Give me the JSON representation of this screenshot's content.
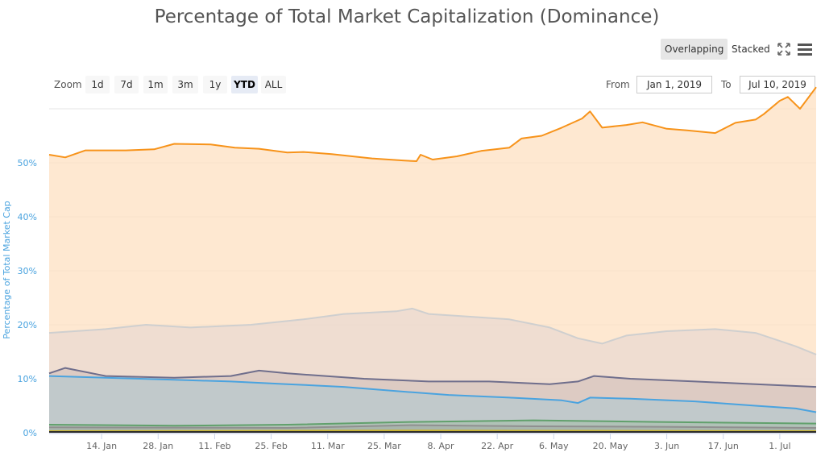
{
  "title": "Percentage of Total Market Capitalization (Dominance)",
  "mode_buttons": [
    "Overlapping",
    "Stacked"
  ],
  "icons": [
    "fullscreen-icon",
    "menu-icon"
  ],
  "zoom": {
    "label": "Zoom",
    "buttons": [
      "1d",
      "7d",
      "1m",
      "3m",
      "1y",
      "YTD",
      "ALL"
    ],
    "active": "YTD"
  },
  "range": {
    "from_label": "From",
    "from_value": "Jan 1, 2019",
    "to_label": "To",
    "to_value": "Jul 10, 2019"
  },
  "chart_data": {
    "type": "area",
    "ylabel": "Percentage of Total Market Cap",
    "ylim": [
      0,
      60
    ],
    "ytick_values": [
      0,
      10,
      20,
      30,
      40,
      50
    ],
    "ytick_labels": [
      "0%",
      "10%",
      "20%",
      "30%",
      "40%",
      "50%"
    ],
    "x_range": [
      "2019-01-01",
      "2019-07-10"
    ],
    "xtick_values": [
      "2019-01-14",
      "2019-01-28",
      "2019-02-11",
      "2019-02-25",
      "2019-03-11",
      "2019-03-25",
      "2019-04-08",
      "2019-04-22",
      "2019-05-06",
      "2019-05-20",
      "2019-06-03",
      "2019-06-17",
      "2019-07-01"
    ],
    "xtick_labels": [
      "14. Jan",
      "28. Jan",
      "11. Feb",
      "25. Feb",
      "11. Mar",
      "25. Mar",
      "8. Apr",
      "22. Apr",
      "6. May",
      "20. May",
      "3. Jun",
      "17. Jun",
      "1. Jul"
    ],
    "grid": true,
    "legend": "none",
    "series": [
      {
        "color": "#f7931a",
        "fill": "#fde0c2",
        "points": [
          [
            "2019-01-01",
            51.5
          ],
          [
            "2019-01-05",
            51.0
          ],
          [
            "2019-01-10",
            52.3
          ],
          [
            "2019-01-20",
            52.3
          ],
          [
            "2019-01-27",
            52.5
          ],
          [
            "2019-02-01",
            53.5
          ],
          [
            "2019-02-10",
            53.4
          ],
          [
            "2019-02-16",
            52.8
          ],
          [
            "2019-02-22",
            52.6
          ],
          [
            "2019-03-01",
            51.9
          ],
          [
            "2019-03-05",
            52.0
          ],
          [
            "2019-03-12",
            51.6
          ],
          [
            "2019-03-22",
            50.8
          ],
          [
            "2019-03-30",
            50.4
          ],
          [
            "2019-04-02",
            50.3
          ],
          [
            "2019-04-03",
            51.5
          ],
          [
            "2019-04-06",
            50.6
          ],
          [
            "2019-04-12",
            51.2
          ],
          [
            "2019-04-18",
            52.2
          ],
          [
            "2019-04-25",
            52.8
          ],
          [
            "2019-04-28",
            54.5
          ],
          [
            "2019-05-03",
            55.0
          ],
          [
            "2019-05-08",
            56.5
          ],
          [
            "2019-05-13",
            58.2
          ],
          [
            "2019-05-15",
            59.5
          ],
          [
            "2019-05-18",
            56.5
          ],
          [
            "2019-05-24",
            57.0
          ],
          [
            "2019-05-28",
            57.5
          ],
          [
            "2019-06-03",
            56.3
          ],
          [
            "2019-06-08",
            56.0
          ],
          [
            "2019-06-15",
            55.5
          ],
          [
            "2019-06-20",
            57.4
          ],
          [
            "2019-06-25",
            58.0
          ],
          [
            "2019-06-27",
            59.0
          ],
          [
            "2019-07-01",
            61.5
          ],
          [
            "2019-07-03",
            62.2
          ],
          [
            "2019-07-06",
            60.0
          ],
          [
            "2019-07-08",
            62.0
          ],
          [
            "2019-07-10",
            64.0
          ]
        ]
      },
      {
        "color": "#cfcfcf",
        "fill": "#ead9d0",
        "points": [
          [
            "2019-01-01",
            18.5
          ],
          [
            "2019-01-15",
            19.2
          ],
          [
            "2019-01-25",
            20.0
          ],
          [
            "2019-02-05",
            19.5
          ],
          [
            "2019-02-20",
            20.0
          ],
          [
            "2019-03-05",
            21.0
          ],
          [
            "2019-03-15",
            22.0
          ],
          [
            "2019-03-28",
            22.5
          ],
          [
            "2019-04-01",
            23.0
          ],
          [
            "2019-04-05",
            22.0
          ],
          [
            "2019-04-15",
            21.5
          ],
          [
            "2019-04-25",
            21.0
          ],
          [
            "2019-05-05",
            19.5
          ],
          [
            "2019-05-12",
            17.5
          ],
          [
            "2019-05-18",
            16.5
          ],
          [
            "2019-05-24",
            18.0
          ],
          [
            "2019-06-03",
            18.8
          ],
          [
            "2019-06-15",
            19.2
          ],
          [
            "2019-06-25",
            18.5
          ],
          [
            "2019-07-01",
            17.0
          ],
          [
            "2019-07-05",
            16.0
          ],
          [
            "2019-07-10",
            14.5
          ]
        ]
      },
      {
        "color": "#6f6e8c",
        "fill": "#d7c4bd",
        "points": [
          [
            "2019-01-01",
            11.0
          ],
          [
            "2019-01-05",
            12.0
          ],
          [
            "2019-01-15",
            10.5
          ],
          [
            "2019-02-01",
            10.2
          ],
          [
            "2019-02-15",
            10.5
          ],
          [
            "2019-02-22",
            11.5
          ],
          [
            "2019-03-01",
            11.0
          ],
          [
            "2019-03-20",
            10.0
          ],
          [
            "2019-04-05",
            9.5
          ],
          [
            "2019-04-20",
            9.5
          ],
          [
            "2019-05-05",
            9.0
          ],
          [
            "2019-05-12",
            9.5
          ],
          [
            "2019-05-16",
            10.5
          ],
          [
            "2019-05-25",
            10.0
          ],
          [
            "2019-06-10",
            9.5
          ],
          [
            "2019-06-25",
            9.0
          ],
          [
            "2019-07-10",
            8.5
          ]
        ]
      },
      {
        "color": "#4aa3df",
        "fill": "#b7c8cd",
        "points": [
          [
            "2019-01-01",
            10.5
          ],
          [
            "2019-01-15",
            10.2
          ],
          [
            "2019-02-01",
            9.8
          ],
          [
            "2019-02-15",
            9.5
          ],
          [
            "2019-03-01",
            9.0
          ],
          [
            "2019-03-15",
            8.5
          ],
          [
            "2019-04-01",
            7.5
          ],
          [
            "2019-04-10",
            7.0
          ],
          [
            "2019-04-25",
            6.5
          ],
          [
            "2019-05-08",
            6.0
          ],
          [
            "2019-05-12",
            5.5
          ],
          [
            "2019-05-15",
            6.5
          ],
          [
            "2019-05-25",
            6.3
          ],
          [
            "2019-06-10",
            5.8
          ],
          [
            "2019-06-25",
            5.0
          ],
          [
            "2019-07-05",
            4.5
          ],
          [
            "2019-07-10",
            3.8
          ]
        ]
      },
      {
        "color": "#61a06c",
        "fill": "#a9bfb0",
        "points": [
          [
            "2019-01-01",
            1.5
          ],
          [
            "2019-02-01",
            1.3
          ],
          [
            "2019-03-01",
            1.5
          ],
          [
            "2019-04-01",
            2.0
          ],
          [
            "2019-05-01",
            2.3
          ],
          [
            "2019-06-01",
            2.0
          ],
          [
            "2019-07-10",
            1.7
          ]
        ]
      },
      {
        "color": "#909090",
        "fill": "#a6b0a8",
        "points": [
          [
            "2019-01-01",
            1.0
          ],
          [
            "2019-03-01",
            0.9
          ],
          [
            "2019-04-01",
            1.4
          ],
          [
            "2019-05-01",
            1.2
          ],
          [
            "2019-06-01",
            1.1
          ],
          [
            "2019-07-10",
            0.9
          ]
        ]
      },
      {
        "color": "#c9b22a",
        "fill": "#c9b22a",
        "points": [
          [
            "2019-01-01",
            0.3
          ],
          [
            "2019-04-01",
            0.4
          ],
          [
            "2019-07-10",
            0.3
          ]
        ]
      },
      {
        "color": "#2b2b2b",
        "fill": "#2b2b2b",
        "points": [
          [
            "2019-01-01",
            0.15
          ],
          [
            "2019-07-10",
            0.15
          ]
        ]
      }
    ]
  }
}
